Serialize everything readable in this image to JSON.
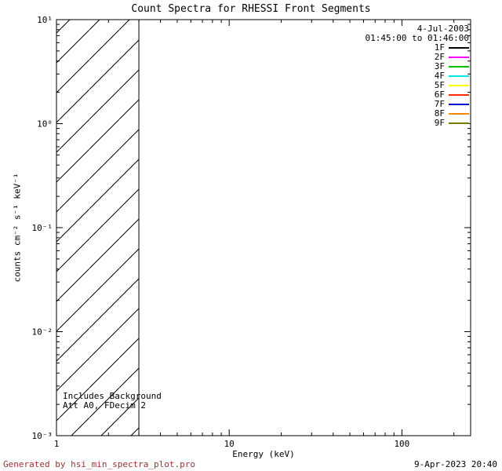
{
  "footer": {
    "generated_by": "Generated by hsi_min_spectra_plot.pro",
    "render_date": "9-Apr-2023 20:40"
  },
  "chart_data": {
    "type": "line",
    "title": "Count Spectra for RHESSI Front Segments",
    "xlabel": "Energy (keV)",
    "ylabel": "counts cm⁻² s⁻¹ keV⁻¹",
    "x_scale": "log",
    "y_scale": "log",
    "xlim": [
      1,
      250
    ],
    "ylim": [
      0.001,
      10
    ],
    "grid": false,
    "x_ticks": [
      {
        "value": 1,
        "label": "1"
      },
      {
        "value": 10,
        "label": "10"
      },
      {
        "value": 100,
        "label": "100"
      }
    ],
    "y_ticks": [
      {
        "value": 0.001,
        "label": "10⁻³"
      },
      {
        "value": 0.01,
        "label": "10⁻²"
      },
      {
        "value": 0.1,
        "label": "10⁻¹"
      },
      {
        "value": 1,
        "label": "10⁰"
      },
      {
        "value": 10,
        "label": "10¹"
      }
    ],
    "series": [],
    "background_band": {
      "x_start": 1,
      "x_end": 3,
      "style": "diagonal-hatch"
    },
    "annotations": [
      "Includes Background",
      "Att A0, FDecim 2"
    ],
    "legend": {
      "position": "top-right",
      "date": "4-Jul-2003",
      "time_range": "01:45:00 to 01:46:00",
      "entries": [
        {
          "label": "1F",
          "color": "#000000"
        },
        {
          "label": "2F",
          "color": "#ff00ff"
        },
        {
          "label": "3F",
          "color": "#00c000"
        },
        {
          "label": "4F",
          "color": "#00e6e6"
        },
        {
          "label": "5F",
          "color": "#ffff00"
        },
        {
          "label": "6F",
          "color": "#ff2a00"
        },
        {
          "label": "7F",
          "color": "#0000cc"
        },
        {
          "label": "8F",
          "color": "#ff8800"
        },
        {
          "label": "9F",
          "color": "#7a7a00"
        }
      ]
    }
  }
}
